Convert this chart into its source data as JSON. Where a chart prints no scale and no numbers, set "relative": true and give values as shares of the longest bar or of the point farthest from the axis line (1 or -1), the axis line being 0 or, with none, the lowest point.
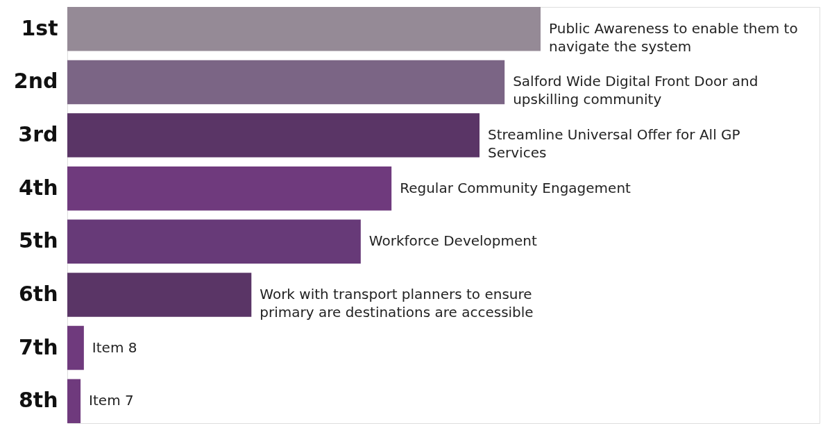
{
  "chart_data": {
    "type": "bar",
    "orientation": "horizontal",
    "relative": true,
    "categories": [
      "1st",
      "2nd",
      "3rd",
      "4th",
      "5th",
      "6th",
      "7th",
      "8th"
    ],
    "values": [
      1,
      0.924,
      0.871,
      0.685,
      0.62,
      0.389,
      0.035,
      0.028
    ],
    "colors": [
      "#958a96",
      "#7b6585",
      "#5a3566",
      "#6f3a7d",
      "#673a78",
      "#5a3566",
      "#6f3a7d",
      "#6f3a7d"
    ],
    "annotations": [
      {
        "text": "Public Awareness to enable them to\nnavigate the system",
        "x": 1,
        "y": "1st"
      },
      {
        "text": "Salford Wide Digital Front Door and\nupskilling community",
        "x": 0.924,
        "y": "2nd"
      },
      {
        "text": "Streamline Universal Offer for All GP\nServices",
        "x": 0.871,
        "y": "3rd"
      },
      {
        "text": "Regular Community Engagement",
        "x": 0.685,
        "y": "4th"
      },
      {
        "text": "Workforce Development",
        "x": 0.62,
        "y": "5th"
      },
      {
        "text": "Work with transport planners to ensure\nprimary are destinations are accessible",
        "x": 0.389,
        "y": "6th"
      },
      {
        "text": "Item 8",
        "x": 0.035,
        "y": "7th"
      },
      {
        "text": "Item 7",
        "x": 0.028,
        "y": "8th"
      }
    ]
  }
}
